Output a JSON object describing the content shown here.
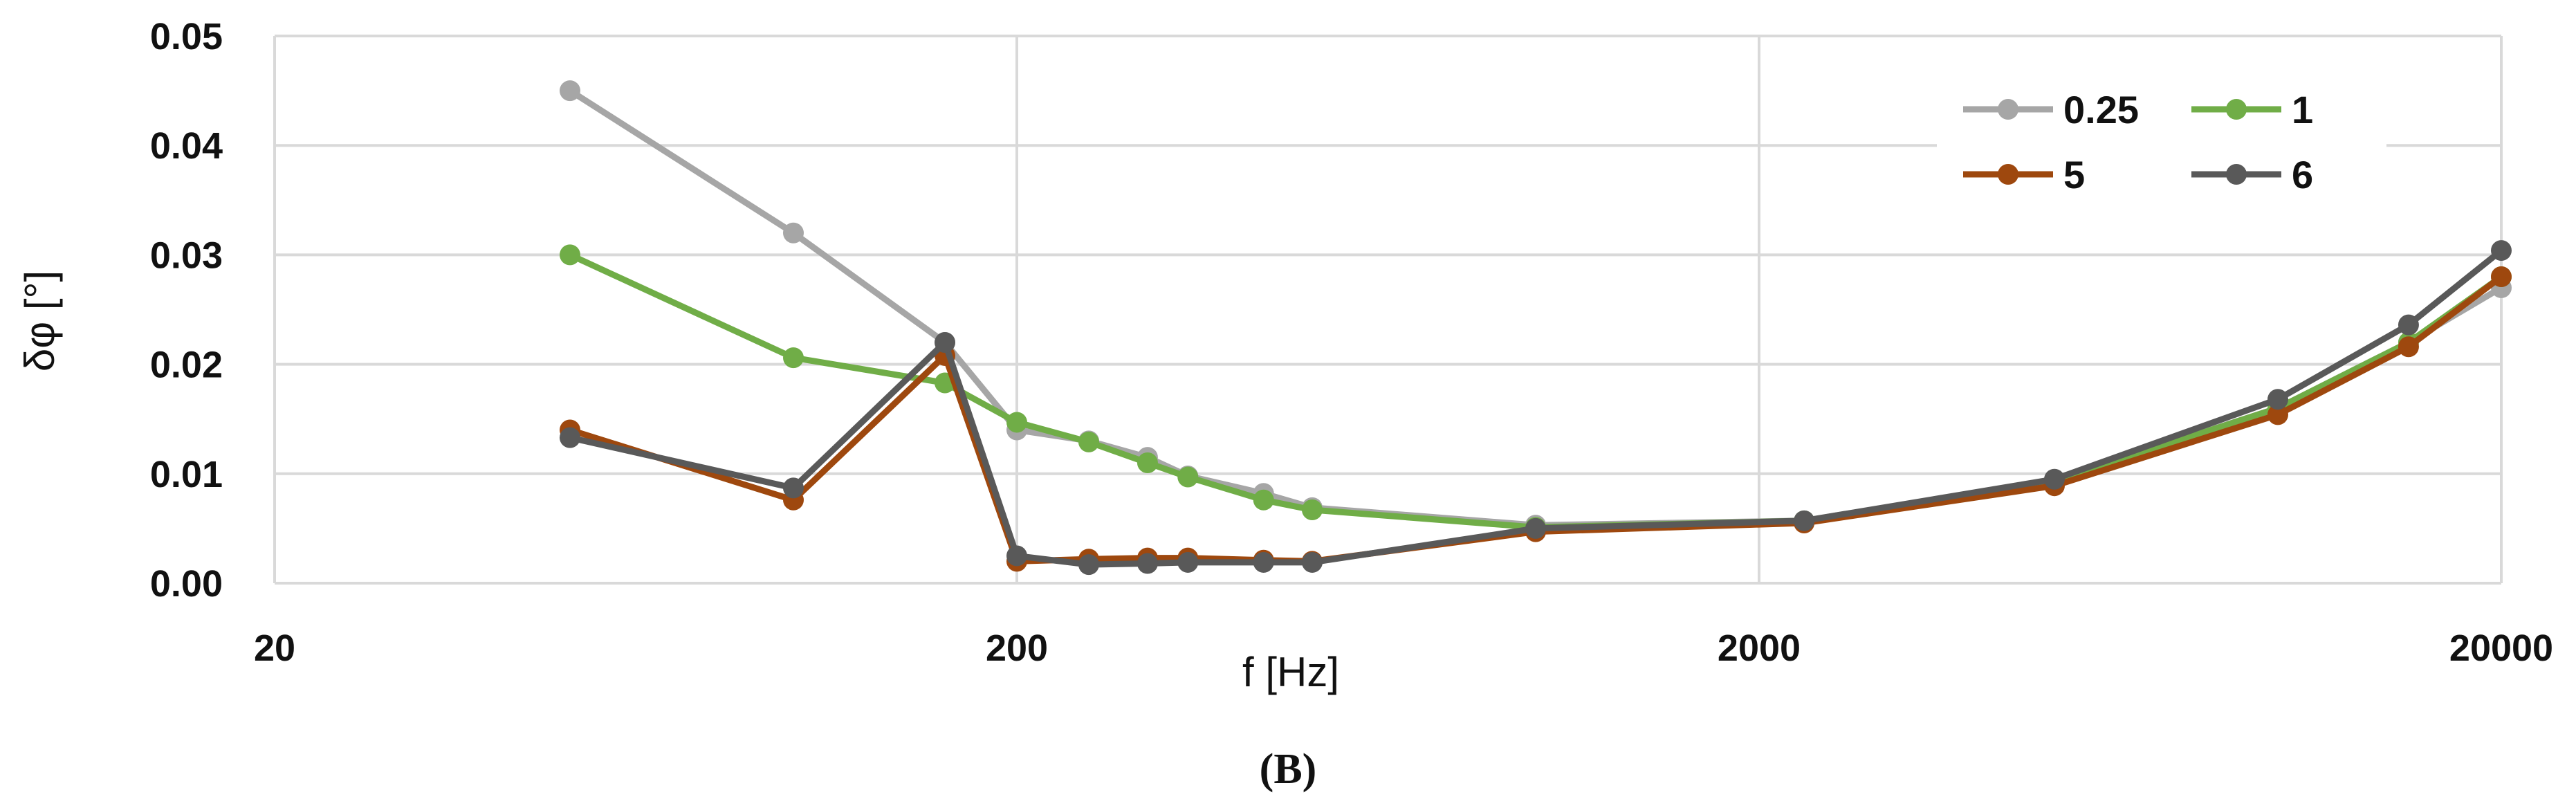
{
  "figure_label": "(B)",
  "chart_data": {
    "type": "line",
    "xlabel": "f [Hz]",
    "ylabel": "δφ [°]",
    "x_scale": "log",
    "xlim": [
      20,
      20000
    ],
    "ylim": [
      0,
      0.05
    ],
    "x_ticks": [
      20,
      200,
      2000,
      20000
    ],
    "x_tick_labels": [
      "20",
      "200",
      "2000",
      "20000"
    ],
    "y_ticks": [
      0,
      0.01,
      0.02,
      0.03,
      0.04,
      0.05
    ],
    "y_tick_labels": [
      "0.00",
      "0.01",
      "0.02",
      "0.03",
      "0.04",
      "0.05"
    ],
    "grid": true,
    "legend_position": "top-right",
    "series": [
      {
        "name": "0.25",
        "color": "#a6a6a6",
        "x": [
          50,
          100,
          160,
          200,
          250,
          300,
          340,
          430,
          500,
          1000,
          2300,
          5000,
          10000,
          15000,
          20000
        ],
        "y": [
          0.045,
          0.032,
          0.022,
          0.014,
          0.013,
          0.0115,
          0.0098,
          0.0082,
          0.0069,
          0.0053,
          0.0057,
          0.0094,
          0.016,
          0.022,
          0.027
        ]
      },
      {
        "name": "1",
        "color": "#70ad47",
        "x": [
          50,
          100,
          160,
          200,
          250,
          300,
          340,
          430,
          500,
          1000,
          2300,
          5000,
          10000,
          15000,
          20000
        ],
        "y": [
          0.03,
          0.0206,
          0.0183,
          0.0147,
          0.0129,
          0.011,
          0.0097,
          0.0076,
          0.0067,
          0.0051,
          0.0057,
          0.0093,
          0.016,
          0.022,
          0.028
        ]
      },
      {
        "name": "5",
        "color": "#9e480e",
        "x": [
          50,
          100,
          160,
          200,
          250,
          300,
          340,
          430,
          500,
          1000,
          2300,
          5000,
          10000,
          15000,
          20000
        ],
        "y": [
          0.014,
          0.0076,
          0.0208,
          0.002,
          0.0022,
          0.0023,
          0.0023,
          0.0021,
          0.002,
          0.0047,
          0.0055,
          0.0089,
          0.0154,
          0.0216,
          0.028
        ]
      },
      {
        "name": "6",
        "color": "#595959",
        "x": [
          50,
          100,
          160,
          200,
          250,
          300,
          340,
          430,
          500,
          1000,
          2300,
          5000,
          10000,
          15000,
          20000
        ],
        "y": [
          0.0133,
          0.0087,
          0.022,
          0.0025,
          0.0017,
          0.0018,
          0.0019,
          0.0019,
          0.0019,
          0.005,
          0.0057,
          0.0095,
          0.0168,
          0.0236,
          0.0304
        ]
      }
    ]
  }
}
